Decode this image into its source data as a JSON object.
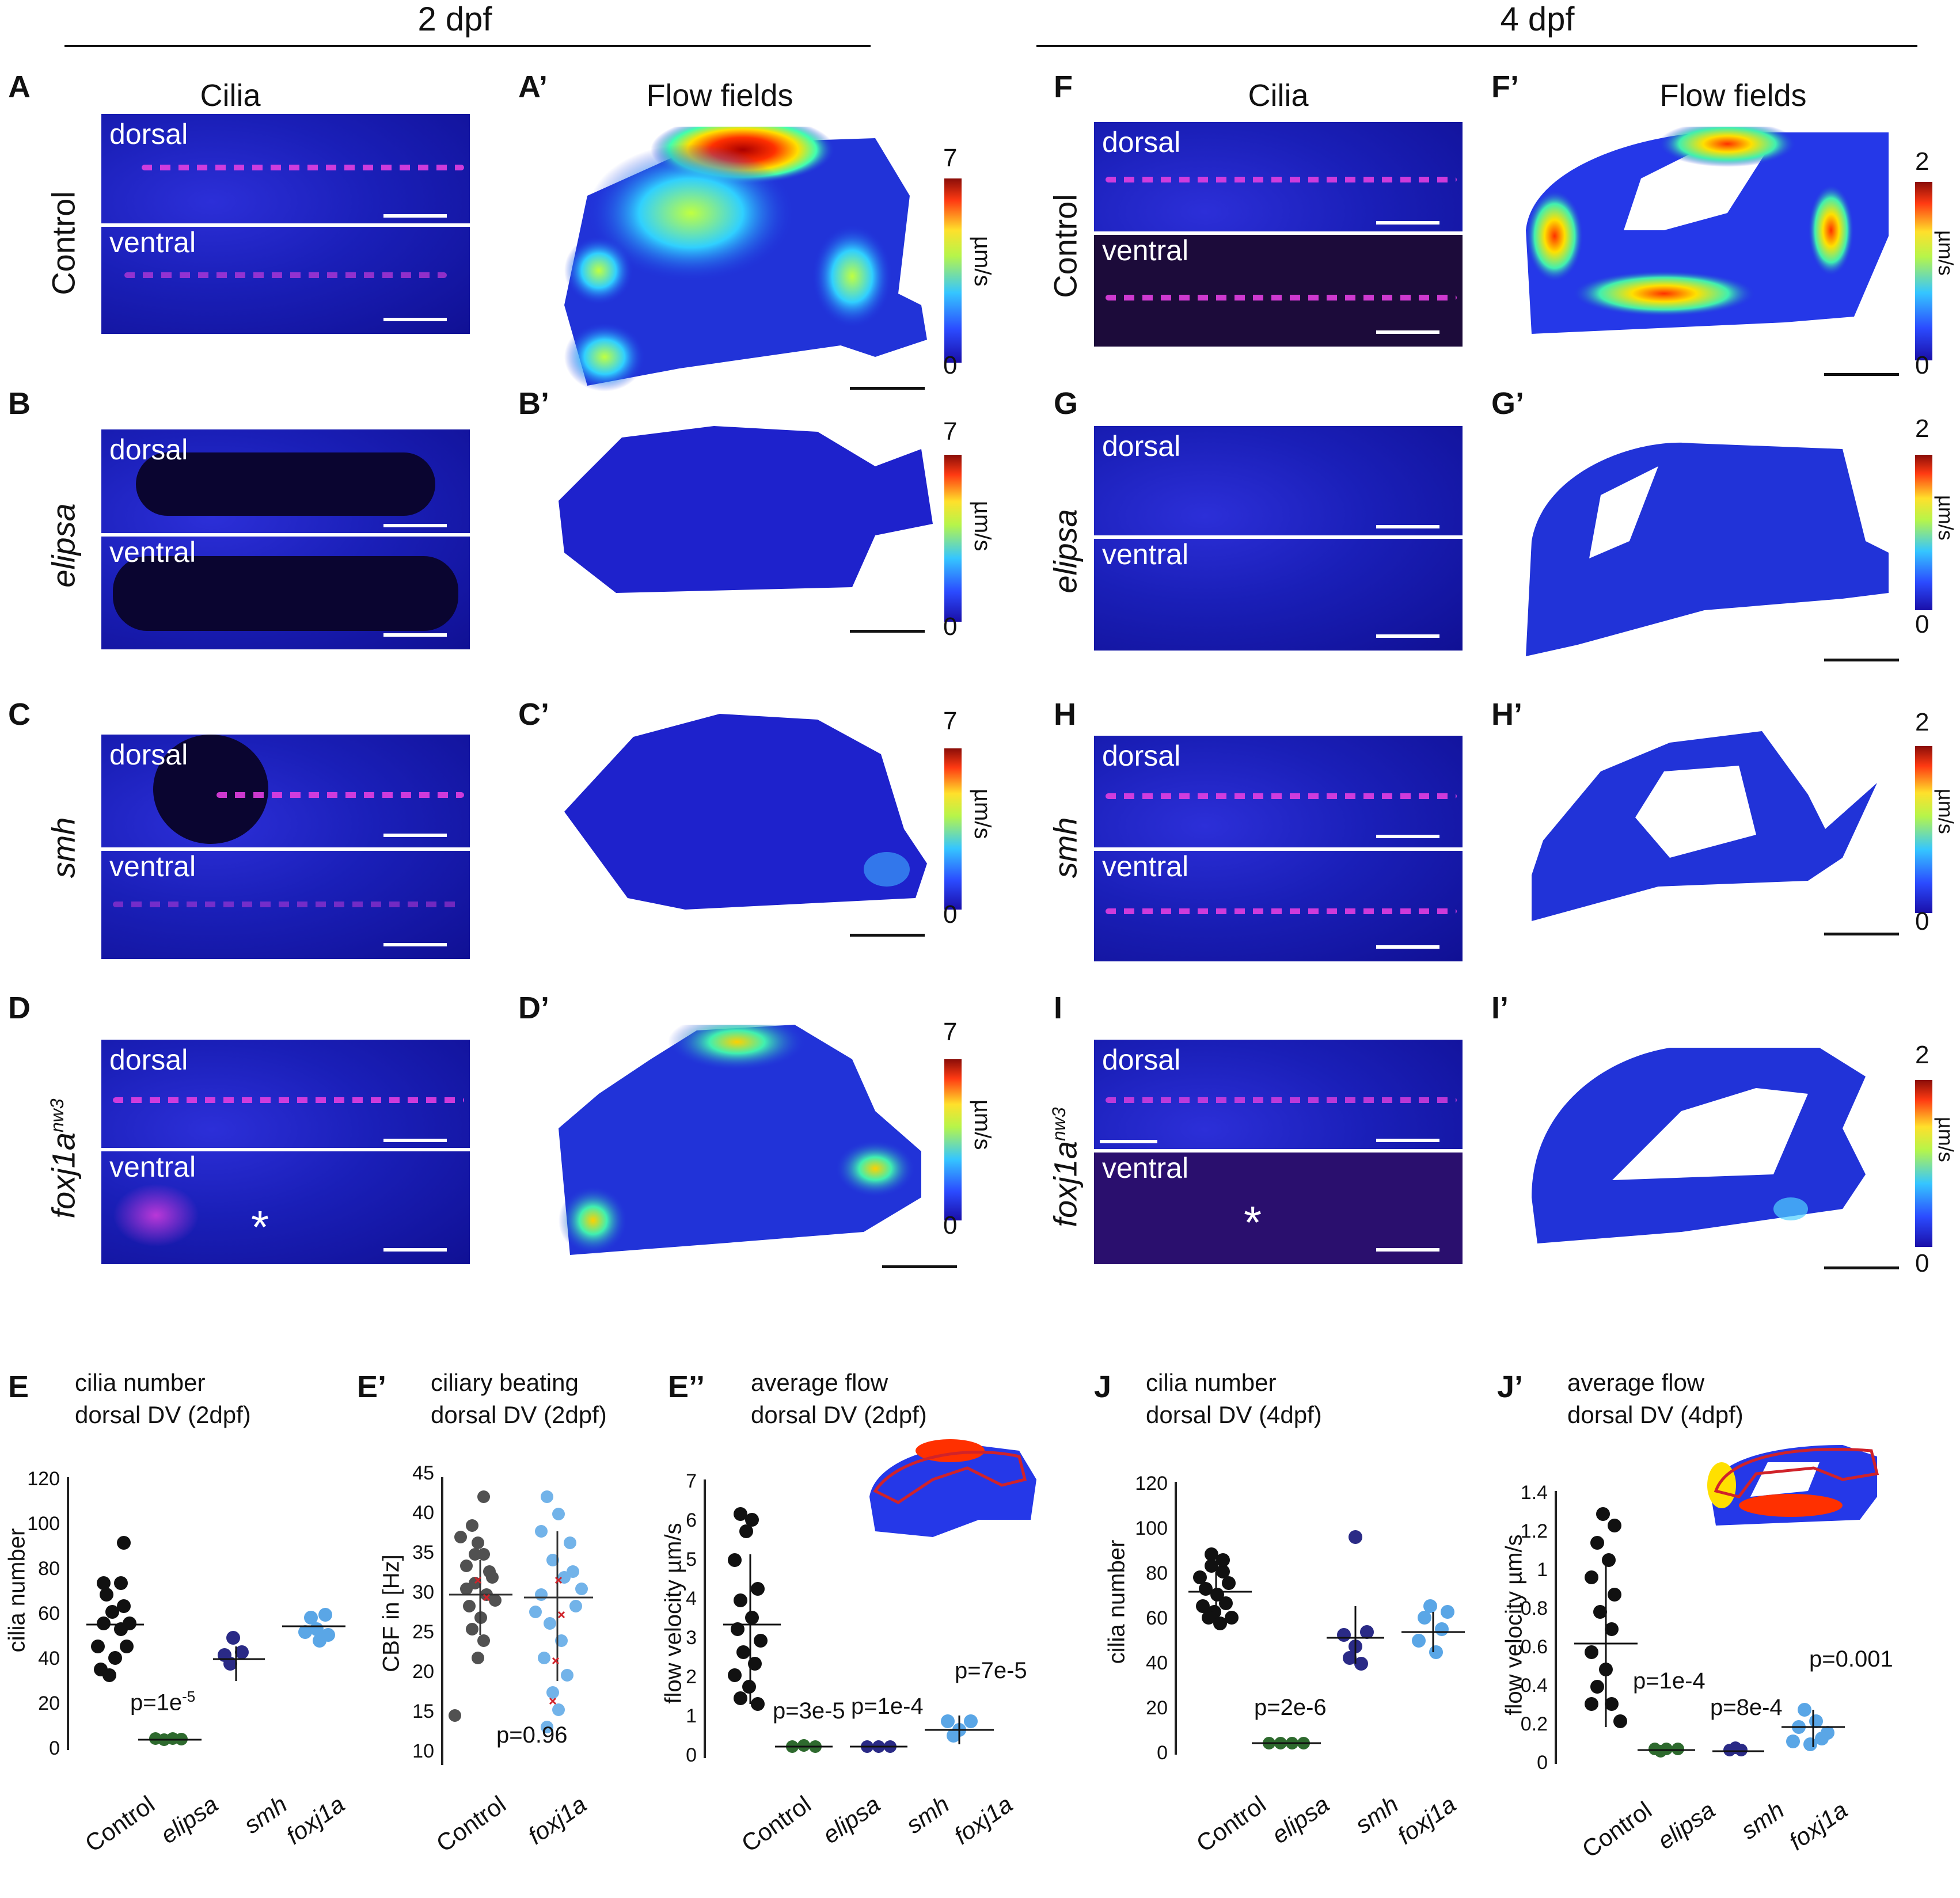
{
  "headers": {
    "left": "2 dpf",
    "right": "4 dpf"
  },
  "columns": {
    "cilia": "Cilia",
    "flow": "Flow fields"
  },
  "rows": {
    "control": "Control",
    "elipsa": "elipsa",
    "smh": "smh",
    "foxj1a": "foxj1a",
    "foxj1a_sup": "nw3"
  },
  "panels": {
    "A": "A",
    "A2": "A’",
    "B": "B",
    "B2": "B’",
    "C": "C",
    "C2": "C’",
    "D": "D",
    "D2": "D’",
    "F": "F",
    "F2": "F’",
    "G": "G",
    "G2": "G’",
    "H": "H",
    "H2": "H’",
    "I": "I",
    "I2": "I’",
    "E": "E",
    "E2": "E’",
    "E3": "E’’",
    "J": "J",
    "J2": "J’"
  },
  "micro": {
    "dorsal": "dorsal",
    "ventral": "ventral",
    "asterisk": "*"
  },
  "colorbar": {
    "max_2dpf": "7",
    "max_4dpf": "2",
    "min": "0",
    "unit": "µm/s"
  },
  "graphs": {
    "E": {
      "title1": "cilia number",
      "title2": "dorsal DV (2dpf)",
      "ylabel": "cilia number",
      "yticks": [
        "120",
        "100",
        "80",
        "60",
        "40",
        "20",
        "0"
      ],
      "pvals": [
        "p=1e",
        "-5"
      ],
      "cats": [
        "Control",
        "elipsa",
        "smh",
        "foxj1a"
      ]
    },
    "E2": {
      "title1": "ciliary beating",
      "title2": "dorsal DV (2dpf)",
      "ylabel": "CBF in [Hz]",
      "yticks": [
        "45",
        "40",
        "35",
        "30",
        "25",
        "20",
        "15",
        "10"
      ],
      "pvals": [
        "p=0.96"
      ],
      "cats": [
        "Control",
        "foxj1a"
      ]
    },
    "E3": {
      "title1": "average flow",
      "title2": "dorsal DV (2dpf)",
      "ylabel": "flow velocity µm/s",
      "yticks": [
        "7",
        "6",
        "5",
        "4",
        "3",
        "2",
        "1",
        "0"
      ],
      "p1": "p=3e-5",
      "p2": "p=1e-4",
      "p3": "p=7e-5",
      "cats": [
        "Control",
        "elipsa",
        "smh",
        "foxj1a"
      ]
    },
    "J": {
      "title1": "cilia number",
      "title2": "dorsal DV (4dpf)",
      "ylabel": "cilia number",
      "yticks": [
        "120",
        "100",
        "80",
        "60",
        "40",
        "20",
        "0"
      ],
      "pvals": [
        "p=2e-6"
      ],
      "cats": [
        "Control",
        "elipsa",
        "smh",
        "foxj1a"
      ]
    },
    "J2": {
      "title1": "average flow",
      "title2": "dorsal DV (4dpf)",
      "ylabel": "flow velocity µm/s",
      "yticks": [
        "1.4",
        "1.2",
        "1",
        "0.8",
        "0.6",
        "0.4",
        "0.2",
        "0"
      ],
      "p1": "p=1e-4",
      "p2": "p=8e-4",
      "p3": "p=0.001",
      "cats": [
        "Control",
        "elipsa",
        "smh",
        "foxj1a"
      ]
    }
  },
  "colors": {
    "control": "#111111",
    "elipsa": "#2e6a2e",
    "smh": "#2a2a86",
    "foxj1a": "#5aa6e6",
    "cbf_marker": "#d0232a"
  }
}
